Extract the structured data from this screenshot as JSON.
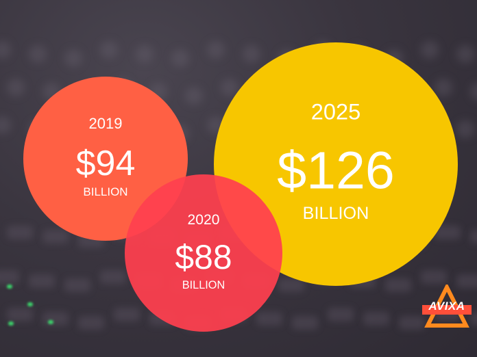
{
  "chart_data": {
    "type": "bubble",
    "title": "",
    "unit_label": "BILLION",
    "points": [
      {
        "year": "2019",
        "value": 94,
        "value_label": "$94",
        "unit": "BILLION",
        "color": "#ff6044"
      },
      {
        "year": "2020",
        "value": 88,
        "value_label": "$88",
        "unit": "BILLION",
        "color": "#ff3f4f"
      },
      {
        "year": "2025",
        "value": 126,
        "value_label": "$126",
        "unit": "BILLION",
        "color": "#f7c600"
      }
    ]
  },
  "logo": {
    "text": "AVIXA",
    "colors": [
      "#ff8a1e",
      "#ff4f3a"
    ]
  }
}
